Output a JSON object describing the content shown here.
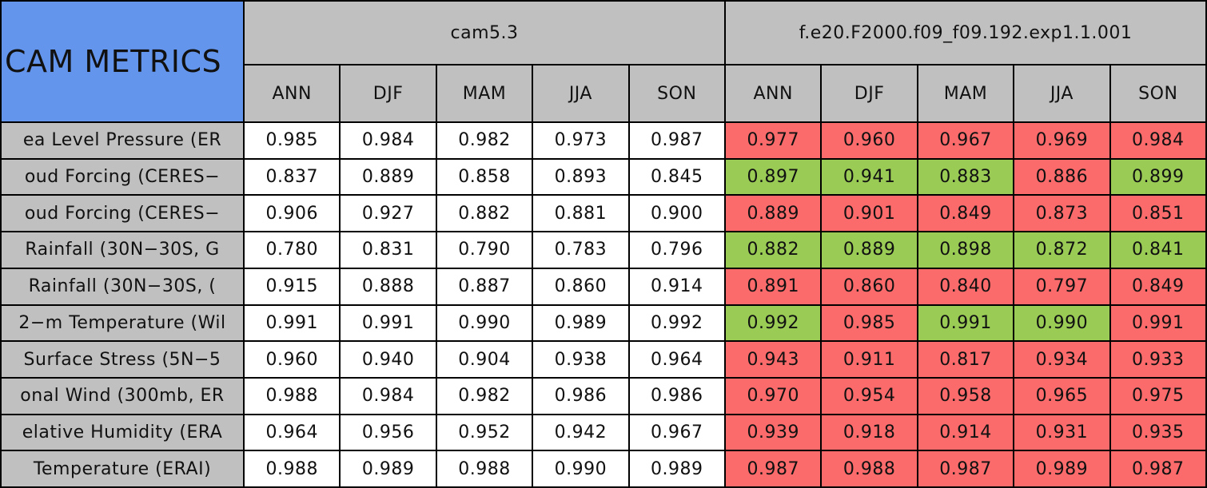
{
  "header": {
    "title": "CAM METRICS",
    "groups": [
      "cam5.3",
      "f.e20.F2000.f09_f09.192.exp1.1.001"
    ],
    "columns": [
      "ANN",
      "DJF",
      "MAM",
      "JJA",
      "SON",
      "ANN",
      "DJF",
      "MAM",
      "JJA",
      "SON"
    ]
  },
  "table": {
    "rows": [
      {
        "label": "ea Level Pressure (ER",
        "values": [
          "0.985",
          "0.984",
          "0.982",
          "0.973",
          "0.987",
          "0.977",
          "0.960",
          "0.967",
          "0.969",
          "0.984"
        ],
        "fills": [
          "#ffffff",
          "#ffffff",
          "#ffffff",
          "#ffffff",
          "#ffffff",
          "#fb6b6b",
          "#fb6b6b",
          "#fb6b6b",
          "#fb6b6b",
          "#fb6b6b"
        ]
      },
      {
        "label": "oud Forcing (CERES−",
        "values": [
          "0.837",
          "0.889",
          "0.858",
          "0.893",
          "0.845",
          "0.897",
          "0.941",
          "0.883",
          "0.886",
          "0.899"
        ],
        "fills": [
          "#ffffff",
          "#ffffff",
          "#ffffff",
          "#ffffff",
          "#ffffff",
          "#9acb55",
          "#9acb55",
          "#9acb55",
          "#fb6b6b",
          "#9acb55"
        ]
      },
      {
        "label": "oud Forcing (CERES−",
        "values": [
          "0.906",
          "0.927",
          "0.882",
          "0.881",
          "0.900",
          "0.889",
          "0.901",
          "0.849",
          "0.873",
          "0.851"
        ],
        "fills": [
          "#ffffff",
          "#ffffff",
          "#ffffff",
          "#ffffff",
          "#ffffff",
          "#fb6b6b",
          "#fb6b6b",
          "#fb6b6b",
          "#fb6b6b",
          "#fb6b6b"
        ]
      },
      {
        "label": "Rainfall (30N−30S, G",
        "values": [
          "0.780",
          "0.831",
          "0.790",
          "0.783",
          "0.796",
          "0.882",
          "0.889",
          "0.898",
          "0.872",
          "0.841"
        ],
        "fills": [
          "#ffffff",
          "#ffffff",
          "#ffffff",
          "#ffffff",
          "#ffffff",
          "#9acb55",
          "#9acb55",
          "#9acb55",
          "#9acb55",
          "#9acb55"
        ]
      },
      {
        "label": "Rainfall (30N−30S, (",
        "values": [
          "0.915",
          "0.888",
          "0.887",
          "0.860",
          "0.914",
          "0.891",
          "0.860",
          "0.840",
          "0.797",
          "0.849"
        ],
        "fills": [
          "#ffffff",
          "#ffffff",
          "#ffffff",
          "#ffffff",
          "#ffffff",
          "#fb6b6b",
          "#fb6b6b",
          "#fb6b6b",
          "#fb6b6b",
          "#fb6b6b"
        ]
      },
      {
        "label": "2−m Temperature (Wil",
        "values": [
          "0.991",
          "0.991",
          "0.990",
          "0.989",
          "0.992",
          "0.992",
          "0.985",
          "0.991",
          "0.990",
          "0.991"
        ],
        "fills": [
          "#ffffff",
          "#ffffff",
          "#ffffff",
          "#ffffff",
          "#ffffff",
          "#9acb55",
          "#fb6b6b",
          "#9acb55",
          "#9acb55",
          "#fb6b6b"
        ]
      },
      {
        "label": "Surface Stress (5N−5",
        "values": [
          "0.960",
          "0.940",
          "0.904",
          "0.938",
          "0.964",
          "0.943",
          "0.911",
          "0.817",
          "0.934",
          "0.933"
        ],
        "fills": [
          "#ffffff",
          "#ffffff",
          "#ffffff",
          "#ffffff",
          "#ffffff",
          "#fb6b6b",
          "#fb6b6b",
          "#fb6b6b",
          "#fb6b6b",
          "#fb6b6b"
        ]
      },
      {
        "label": "onal Wind (300mb, ER",
        "values": [
          "0.988",
          "0.984",
          "0.982",
          "0.986",
          "0.986",
          "0.970",
          "0.954",
          "0.958",
          "0.965",
          "0.975"
        ],
        "fills": [
          "#ffffff",
          "#ffffff",
          "#ffffff",
          "#ffffff",
          "#ffffff",
          "#fb6b6b",
          "#fb6b6b",
          "#fb6b6b",
          "#fb6b6b",
          "#fb6b6b"
        ]
      },
      {
        "label": "elative Humidity (ERA",
        "values": [
          "0.964",
          "0.956",
          "0.952",
          "0.942",
          "0.967",
          "0.939",
          "0.918",
          "0.914",
          "0.931",
          "0.935"
        ],
        "fills": [
          "#ffffff",
          "#ffffff",
          "#ffffff",
          "#ffffff",
          "#ffffff",
          "#fb6b6b",
          "#fb6b6b",
          "#fb6b6b",
          "#fb6b6b",
          "#fb6b6b"
        ]
      },
      {
        "label": "Temperature (ERAI)",
        "values": [
          "0.988",
          "0.989",
          "0.988",
          "0.990",
          "0.989",
          "0.987",
          "0.988",
          "0.987",
          "0.989",
          "0.987"
        ],
        "fills": [
          "#ffffff",
          "#ffffff",
          "#ffffff",
          "#ffffff",
          "#ffffff",
          "#fb6b6b",
          "#fb6b6b",
          "#fb6b6b",
          "#fb6b6b",
          "#fb6b6b"
        ]
      }
    ]
  }
}
